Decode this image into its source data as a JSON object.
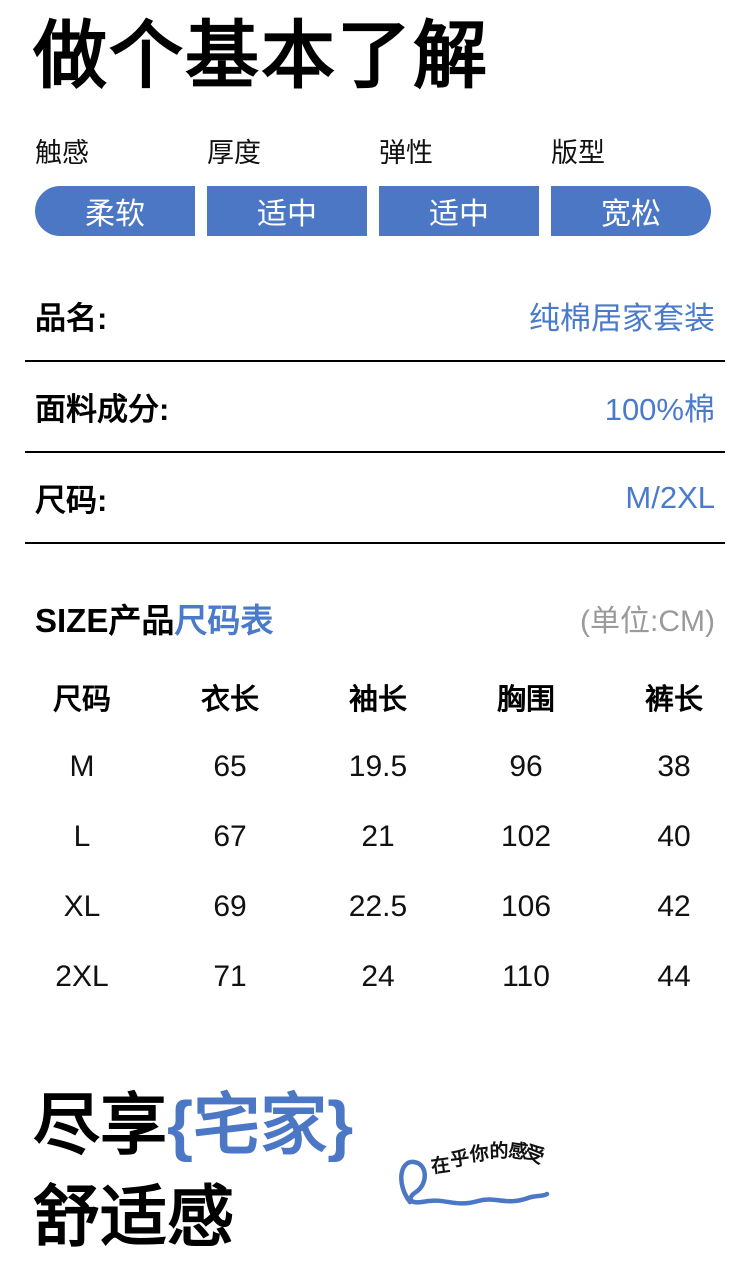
{
  "page": {
    "title": "做个基本了解"
  },
  "colors": {
    "accent_blue_pill": "#4b77c5",
    "accent_blue_text": "#4a7bca",
    "gray_note": "#9a9a9a",
    "text_black": "#000000"
  },
  "attributes": [
    {
      "label": "触感",
      "value": "柔软"
    },
    {
      "label": "厚度",
      "value": "适中"
    },
    {
      "label": "弹性",
      "value": "适中"
    },
    {
      "label": "版型",
      "value": "宽松"
    }
  ],
  "specs": [
    {
      "label": "品名:",
      "value": "纯棉居家套装"
    },
    {
      "label": "面料成分:",
      "value": "100%棉"
    },
    {
      "label": "尺码:",
      "value": "M/2XL"
    }
  ],
  "size_section": {
    "heading_black": "SIZE产品",
    "heading_blue": "尺码表",
    "unit_note": "(单位:CM)"
  },
  "size_table": {
    "columns": [
      "尺码",
      "衣长",
      "袖长",
      "胸围",
      "裤长"
    ],
    "rows": [
      [
        "M",
        "65",
        "19.5",
        "96",
        "38"
      ],
      [
        "L",
        "67",
        "21",
        "102",
        "40"
      ],
      [
        "XL",
        "69",
        "22.5",
        "106",
        "42"
      ],
      [
        "2XL",
        "71",
        "24",
        "110",
        "44"
      ]
    ]
  },
  "slogan": {
    "line1_black": "尽享",
    "line1_blue": "{宅家}",
    "line2": "舒适感",
    "ribbon_text": "在乎你的感受"
  }
}
